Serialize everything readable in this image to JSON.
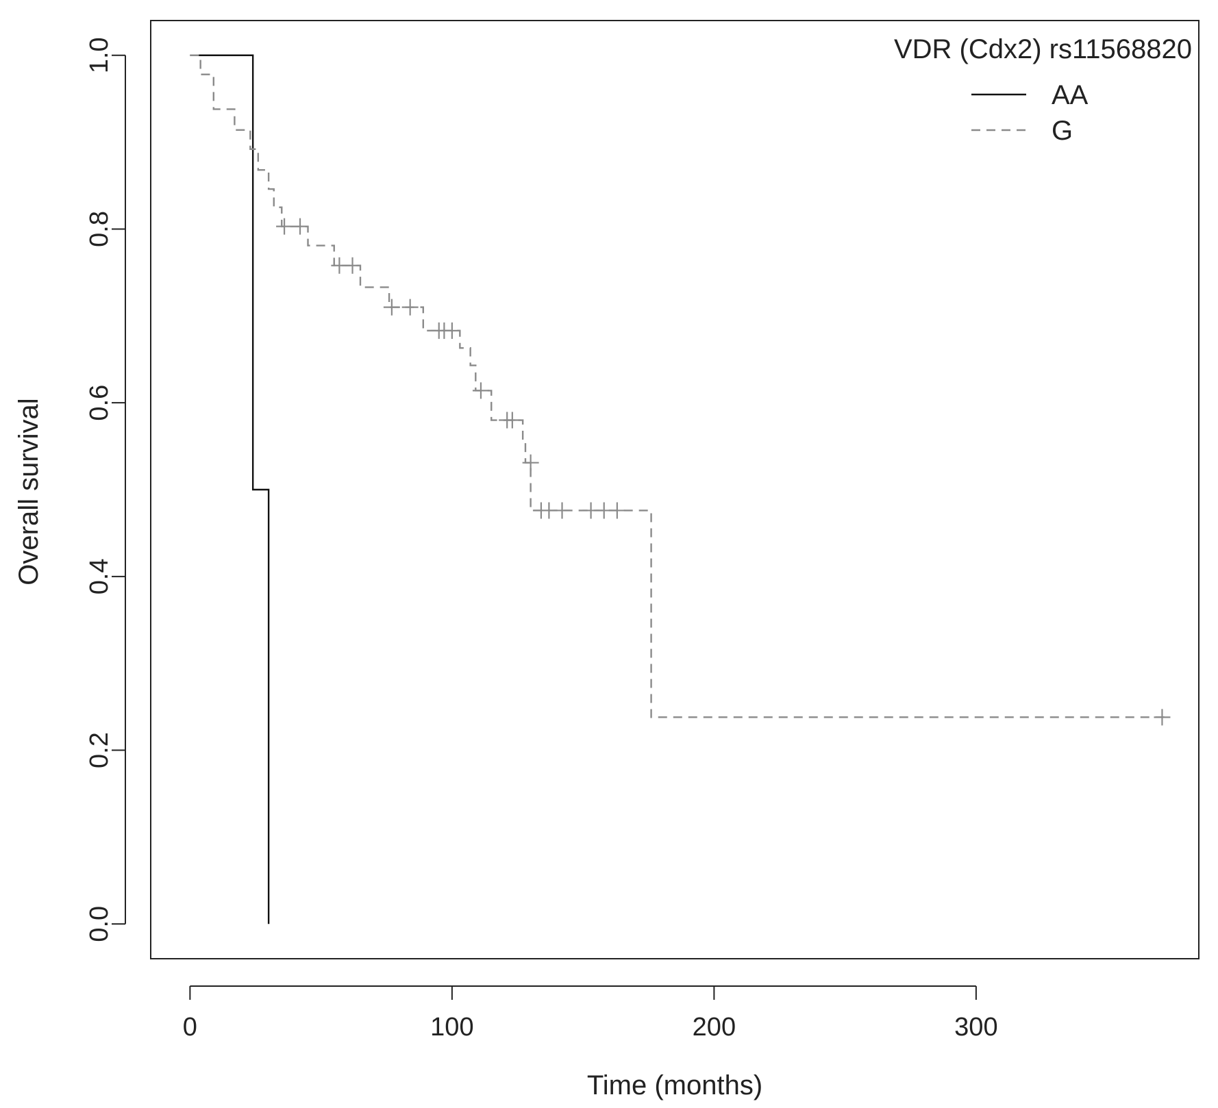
{
  "chart_data": {
    "type": "line",
    "subtype": "kaplan-meier",
    "title": "",
    "xlabel": "Time (months)",
    "ylabel": "Overall survival",
    "xlim": [
      -15,
      385
    ],
    "ylim": [
      -0.04,
      1.04
    ],
    "xticks": [
      0,
      100,
      200,
      300
    ],
    "yticks": [
      0.0,
      0.2,
      0.4,
      0.6,
      0.8,
      1.0
    ],
    "grid": false,
    "legend": {
      "title": "VDR (Cdx2) rs11568820",
      "position": "top-right",
      "entries": [
        "AA",
        "G"
      ]
    },
    "series": [
      {
        "name": "AA",
        "line_style": "solid",
        "color": "#111111",
        "steps": [
          [
            0,
            1.0
          ],
          [
            24,
            0.5
          ],
          [
            30,
            0.0
          ]
        ],
        "censored": []
      },
      {
        "name": "G",
        "line_style": "dashed",
        "color": "#8a8a8a",
        "steps": [
          [
            0,
            1.0
          ],
          [
            4,
            0.978
          ],
          [
            9,
            0.938
          ],
          [
            17,
            0.914
          ],
          [
            23,
            0.892
          ],
          [
            26,
            0.868
          ],
          [
            30,
            0.846
          ],
          [
            32,
            0.825
          ],
          [
            35,
            0.803
          ],
          [
            45,
            0.781
          ],
          [
            55,
            0.758
          ],
          [
            65,
            0.733
          ],
          [
            76,
            0.71
          ],
          [
            89,
            0.683
          ],
          [
            103,
            0.663
          ],
          [
            107,
            0.643
          ],
          [
            109,
            0.614
          ],
          [
            115,
            0.58
          ],
          [
            127,
            0.556
          ],
          [
            128,
            0.531
          ],
          [
            130,
            0.476
          ],
          [
            176,
            0.238
          ]
        ],
        "censored": [
          [
            36,
            0.803
          ],
          [
            42,
            0.803
          ],
          [
            57,
            0.758
          ],
          [
            62,
            0.758
          ],
          [
            77,
            0.71
          ],
          [
            84,
            0.71
          ],
          [
            95,
            0.683
          ],
          [
            97,
            0.683
          ],
          [
            100,
            0.683
          ],
          [
            111,
            0.614
          ],
          [
            121,
            0.58
          ],
          [
            123,
            0.58
          ],
          [
            130,
            0.531
          ],
          [
            134,
            0.476
          ],
          [
            137,
            0.476
          ],
          [
            142,
            0.476
          ],
          [
            153,
            0.476
          ],
          [
            158,
            0.476
          ],
          [
            163,
            0.476
          ],
          [
            371,
            0.238
          ]
        ],
        "end_x": 372
      }
    ]
  }
}
